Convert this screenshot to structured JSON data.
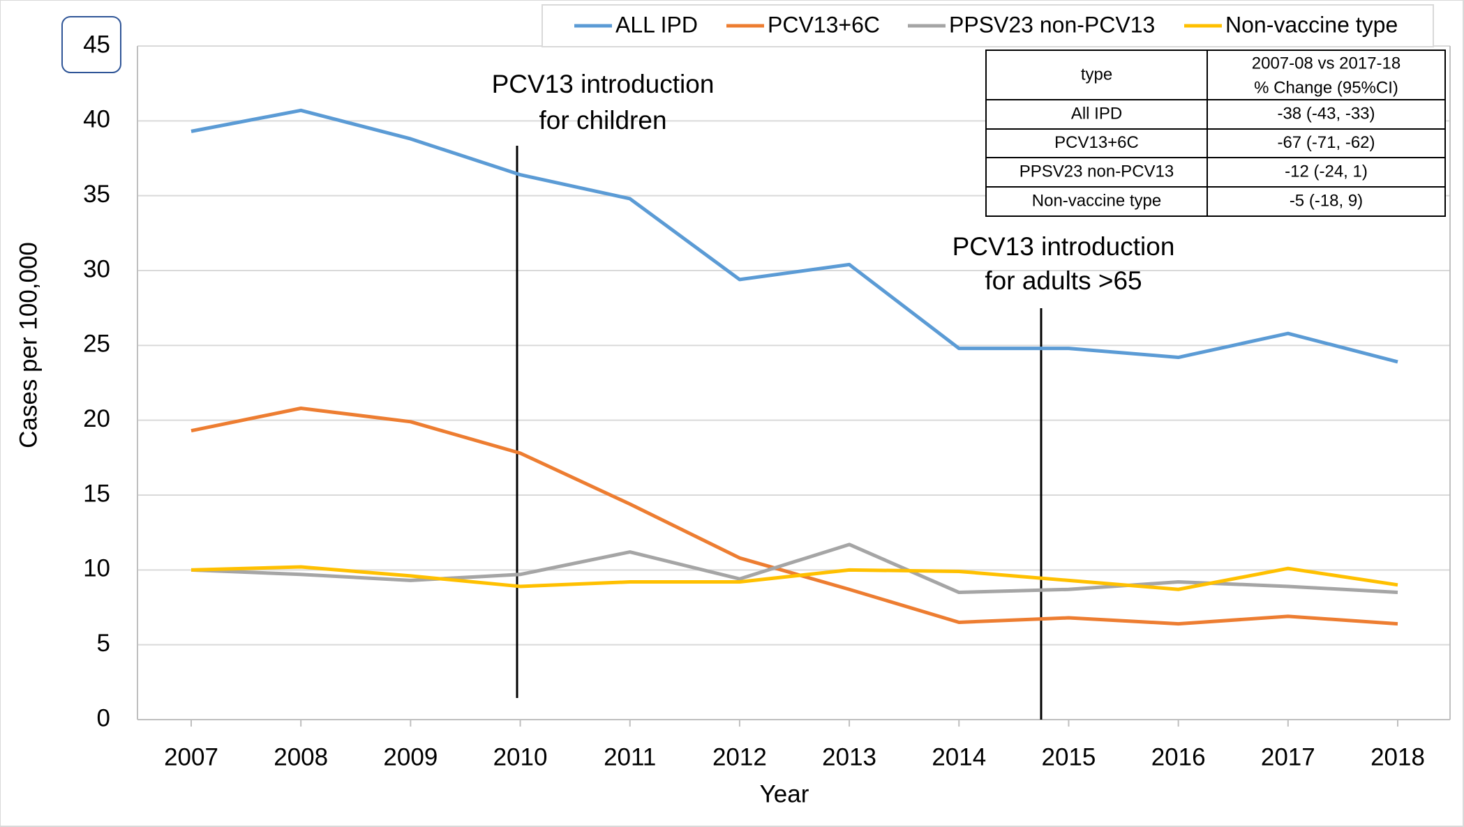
{
  "chart_data": {
    "type": "line",
    "y_label": "Cases per 100,000",
    "x_label": "Year",
    "categories": [
      "2007",
      "2008",
      "2009",
      "2010",
      "2011",
      "2012",
      "2013",
      "2014",
      "2015",
      "2016",
      "2017",
      "2018"
    ],
    "series": [
      {
        "name": "ALL IPD",
        "color": "#5b9bd5",
        "values": [
          39.3,
          40.7,
          38.8,
          36.4,
          34.8,
          29.4,
          30.4,
          24.8,
          24.8,
          24.2,
          25.8,
          23.9
        ]
      },
      {
        "name": "PCV13+6C",
        "color": "#ed7d31",
        "values": [
          19.3,
          20.8,
          19.9,
          17.8,
          14.4,
          10.8,
          8.7,
          6.5,
          6.8,
          6.4,
          6.9,
          6.4
        ]
      },
      {
        "name": "PPSV23 non-PCV13",
        "color": "#a5a5a5",
        "values": [
          10.0,
          9.7,
          9.3,
          9.7,
          11.2,
          9.4,
          11.7,
          8.5,
          8.7,
          9.2,
          8.9,
          8.5
        ]
      },
      {
        "name": "Non-vaccine type",
        "color": "#ffc000",
        "values": [
          10.0,
          10.2,
          9.6,
          8.9,
          9.2,
          9.2,
          10.0,
          9.9,
          9.3,
          8.7,
          10.1,
          9.0
        ]
      }
    ],
    "ylim": [
      0,
      45
    ],
    "yticks": [
      0,
      5,
      10,
      15,
      20,
      25,
      30,
      35,
      40,
      45
    ],
    "grid": true,
    "annotations": [
      {
        "lines": [
          "PCV13 introduction",
          "for children"
        ]
      },
      {
        "lines": [
          "PCV13 introduction",
          "for adults >65"
        ]
      }
    ],
    "table": {
      "header": [
        "type",
        [
          "2007-08 vs 2017-18",
          "% Change  (95%CI)"
        ]
      ],
      "rows": [
        [
          "All IPD",
          "-38 (-43, -33)"
        ],
        [
          "PCV13+6C",
          "-67 (-71, -62)"
        ],
        [
          "PPSV23 non-PCV13",
          "-12 (-24, 1)"
        ],
        [
          "Non-vaccine type",
          "-5 (-18, 9)"
        ]
      ]
    }
  }
}
